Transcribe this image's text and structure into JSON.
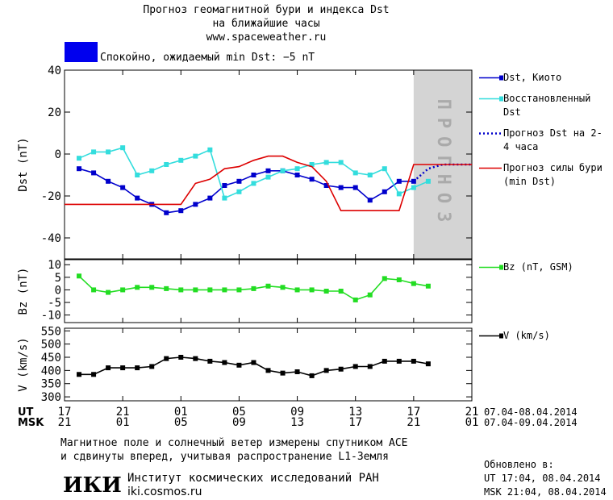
{
  "header": {
    "title": "Прогноз геомагнитной бури и индекса Dst",
    "subtitle": "на ближайшие часы",
    "url": "www.spaceweather.ru",
    "status": "Спокойно, ожидаемый min Dst: −5 nT",
    "status_color": "#0000ee"
  },
  "chart_data": [
    {
      "type": "line",
      "ylabel": "Dst (nT)",
      "xlim": [
        0,
        28
      ],
      "ylim": [
        -50,
        40
      ],
      "yticks": [
        -40,
        -20,
        0,
        20,
        40
      ],
      "forecast_region": [
        24,
        28
      ],
      "annotation": "ПРОГНОЗ",
      "series": [
        {
          "name": "Dst, Киото",
          "color": "#0000cc",
          "marker": "square",
          "x": [
            1,
            2,
            3,
            4,
            5,
            6,
            7,
            8,
            9,
            10,
            11,
            12,
            13,
            14,
            15,
            16,
            17,
            18,
            19,
            20,
            21,
            22,
            23,
            24
          ],
          "values": [
            -7,
            -9,
            -13,
            -16,
            -21,
            -24,
            -28,
            -27,
            -24,
            -21,
            -15,
            -13,
            -10,
            -8,
            -8,
            -10,
            -12,
            -15,
            -16,
            -16,
            -22,
            -18,
            -13,
            -13
          ]
        },
        {
          "name": "Восстановленный Dst",
          "color": "#33dddd",
          "marker": "square",
          "x": [
            1,
            2,
            3,
            4,
            5,
            6,
            7,
            8,
            9,
            10,
            11,
            12,
            13,
            14,
            15,
            16,
            17,
            18,
            19,
            20,
            21,
            22,
            23,
            24,
            25
          ],
          "values": [
            -2,
            1,
            1,
            3,
            -10,
            -8,
            -5,
            -3,
            -1,
            2,
            -21,
            -18,
            -14,
            -11,
            -8,
            -7,
            -5,
            -4,
            -4,
            -9,
            -10,
            -7,
            -19,
            -16,
            -13
          ]
        },
        {
          "name": "Прогноз Dst на 2-4 часа",
          "color": "#0000cc",
          "dash": true,
          "x": [
            24,
            25,
            26,
            27,
            28
          ],
          "values": [
            -13,
            -7,
            -5,
            -5,
            -5
          ]
        },
        {
          "name": "Прогноз силы бури (min Dst)",
          "color": "#dd0000",
          "x": [
            0,
            8,
            9,
            10,
            11,
            12,
            13,
            14,
            15,
            16,
            17,
            18,
            19,
            23,
            24,
            28
          ],
          "values": [
            -24,
            -24,
            -14,
            -12,
            -7,
            -6,
            -3,
            -1,
            -1,
            -4,
            -6,
            -13,
            -27,
            -27,
            -5,
            -5
          ]
        }
      ]
    },
    {
      "type": "line",
      "ylabel": "Bz (nT)",
      "xlim": [
        0,
        28
      ],
      "ylim": [
        -13,
        12
      ],
      "yticks": [
        -10,
        -5,
        0,
        5,
        10
      ],
      "series": [
        {
          "name": "Bz (nT, GSM)",
          "color": "#22dd22",
          "marker": "square",
          "x": [
            1,
            2,
            3,
            4,
            5,
            6,
            7,
            8,
            9,
            10,
            11,
            12,
            13,
            14,
            15,
            16,
            17,
            18,
            19,
            20,
            21,
            22,
            23,
            24,
            25
          ],
          "values": [
            5.5,
            0,
            -1,
            0,
            1,
            1,
            0.5,
            0,
            0,
            0,
            0,
            0,
            0.5,
            1.5,
            1,
            0,
            0,
            -0.5,
            -0.5,
            -4,
            -2,
            4.5,
            4,
            2.5,
            1.5
          ]
        }
      ]
    },
    {
      "type": "line",
      "ylabel": "V (km/s)",
      "xlim": [
        0,
        28
      ],
      "ylim": [
        285,
        560
      ],
      "yticks": [
        300,
        350,
        400,
        450,
        500,
        550
      ],
      "xticks": [
        {
          "value": 0,
          "label": "17"
        },
        {
          "value": 4,
          "label": "21"
        },
        {
          "value": 8,
          "label": "01"
        },
        {
          "value": 12,
          "label": "05"
        },
        {
          "value": 16,
          "label": "09"
        },
        {
          "value": 20,
          "label": "13"
        },
        {
          "value": 24,
          "label": "17"
        },
        {
          "value": 28,
          "label": "21"
        }
      ],
      "xticks2": [
        {
          "value": 0,
          "label": "21"
        },
        {
          "value": 4,
          "label": "01"
        },
        {
          "value": 8,
          "label": "05"
        },
        {
          "value": 12,
          "label": "09"
        },
        {
          "value": 16,
          "label": "13"
        },
        {
          "value": 20,
          "label": "17"
        },
        {
          "value": 24,
          "label": "21"
        },
        {
          "value": 28,
          "label": "01"
        }
      ],
      "xrow_labels": [
        "UT",
        "MSK"
      ],
      "xrow_dates": [
        "07.04-08.04.2014",
        "07.04-09.04.2014"
      ],
      "series": [
        {
          "name": "V (km/s)",
          "color": "#000000",
          "marker": "square",
          "x": [
            1,
            2,
            3,
            4,
            5,
            6,
            7,
            8,
            9,
            10,
            11,
            12,
            13,
            14,
            15,
            16,
            17,
            18,
            19,
            20,
            21,
            22,
            23,
            24,
            25
          ],
          "values": [
            385,
            385,
            410,
            410,
            410,
            415,
            445,
            450,
            445,
            435,
            430,
            420,
            430,
            400,
            390,
            395,
            380,
            400,
            405,
            415,
            415,
            435,
            435,
            435,
            425
          ]
        }
      ]
    }
  ],
  "footer": {
    "note1": "Магнитное поле и солнечный ветер измерены спутником ACE",
    "note2": "и сдвинуты вперед, учитывая распространение L1-Земля",
    "logo": "ИКИ",
    "institute": "Институт космических исследований РАН",
    "site": "iki.cosmos.ru",
    "updated": "Обновлено в:",
    "updated_ut": "UT  17:04, 08.04.2014",
    "updated_msk": "MSK 21:04, 08.04.2014"
  }
}
